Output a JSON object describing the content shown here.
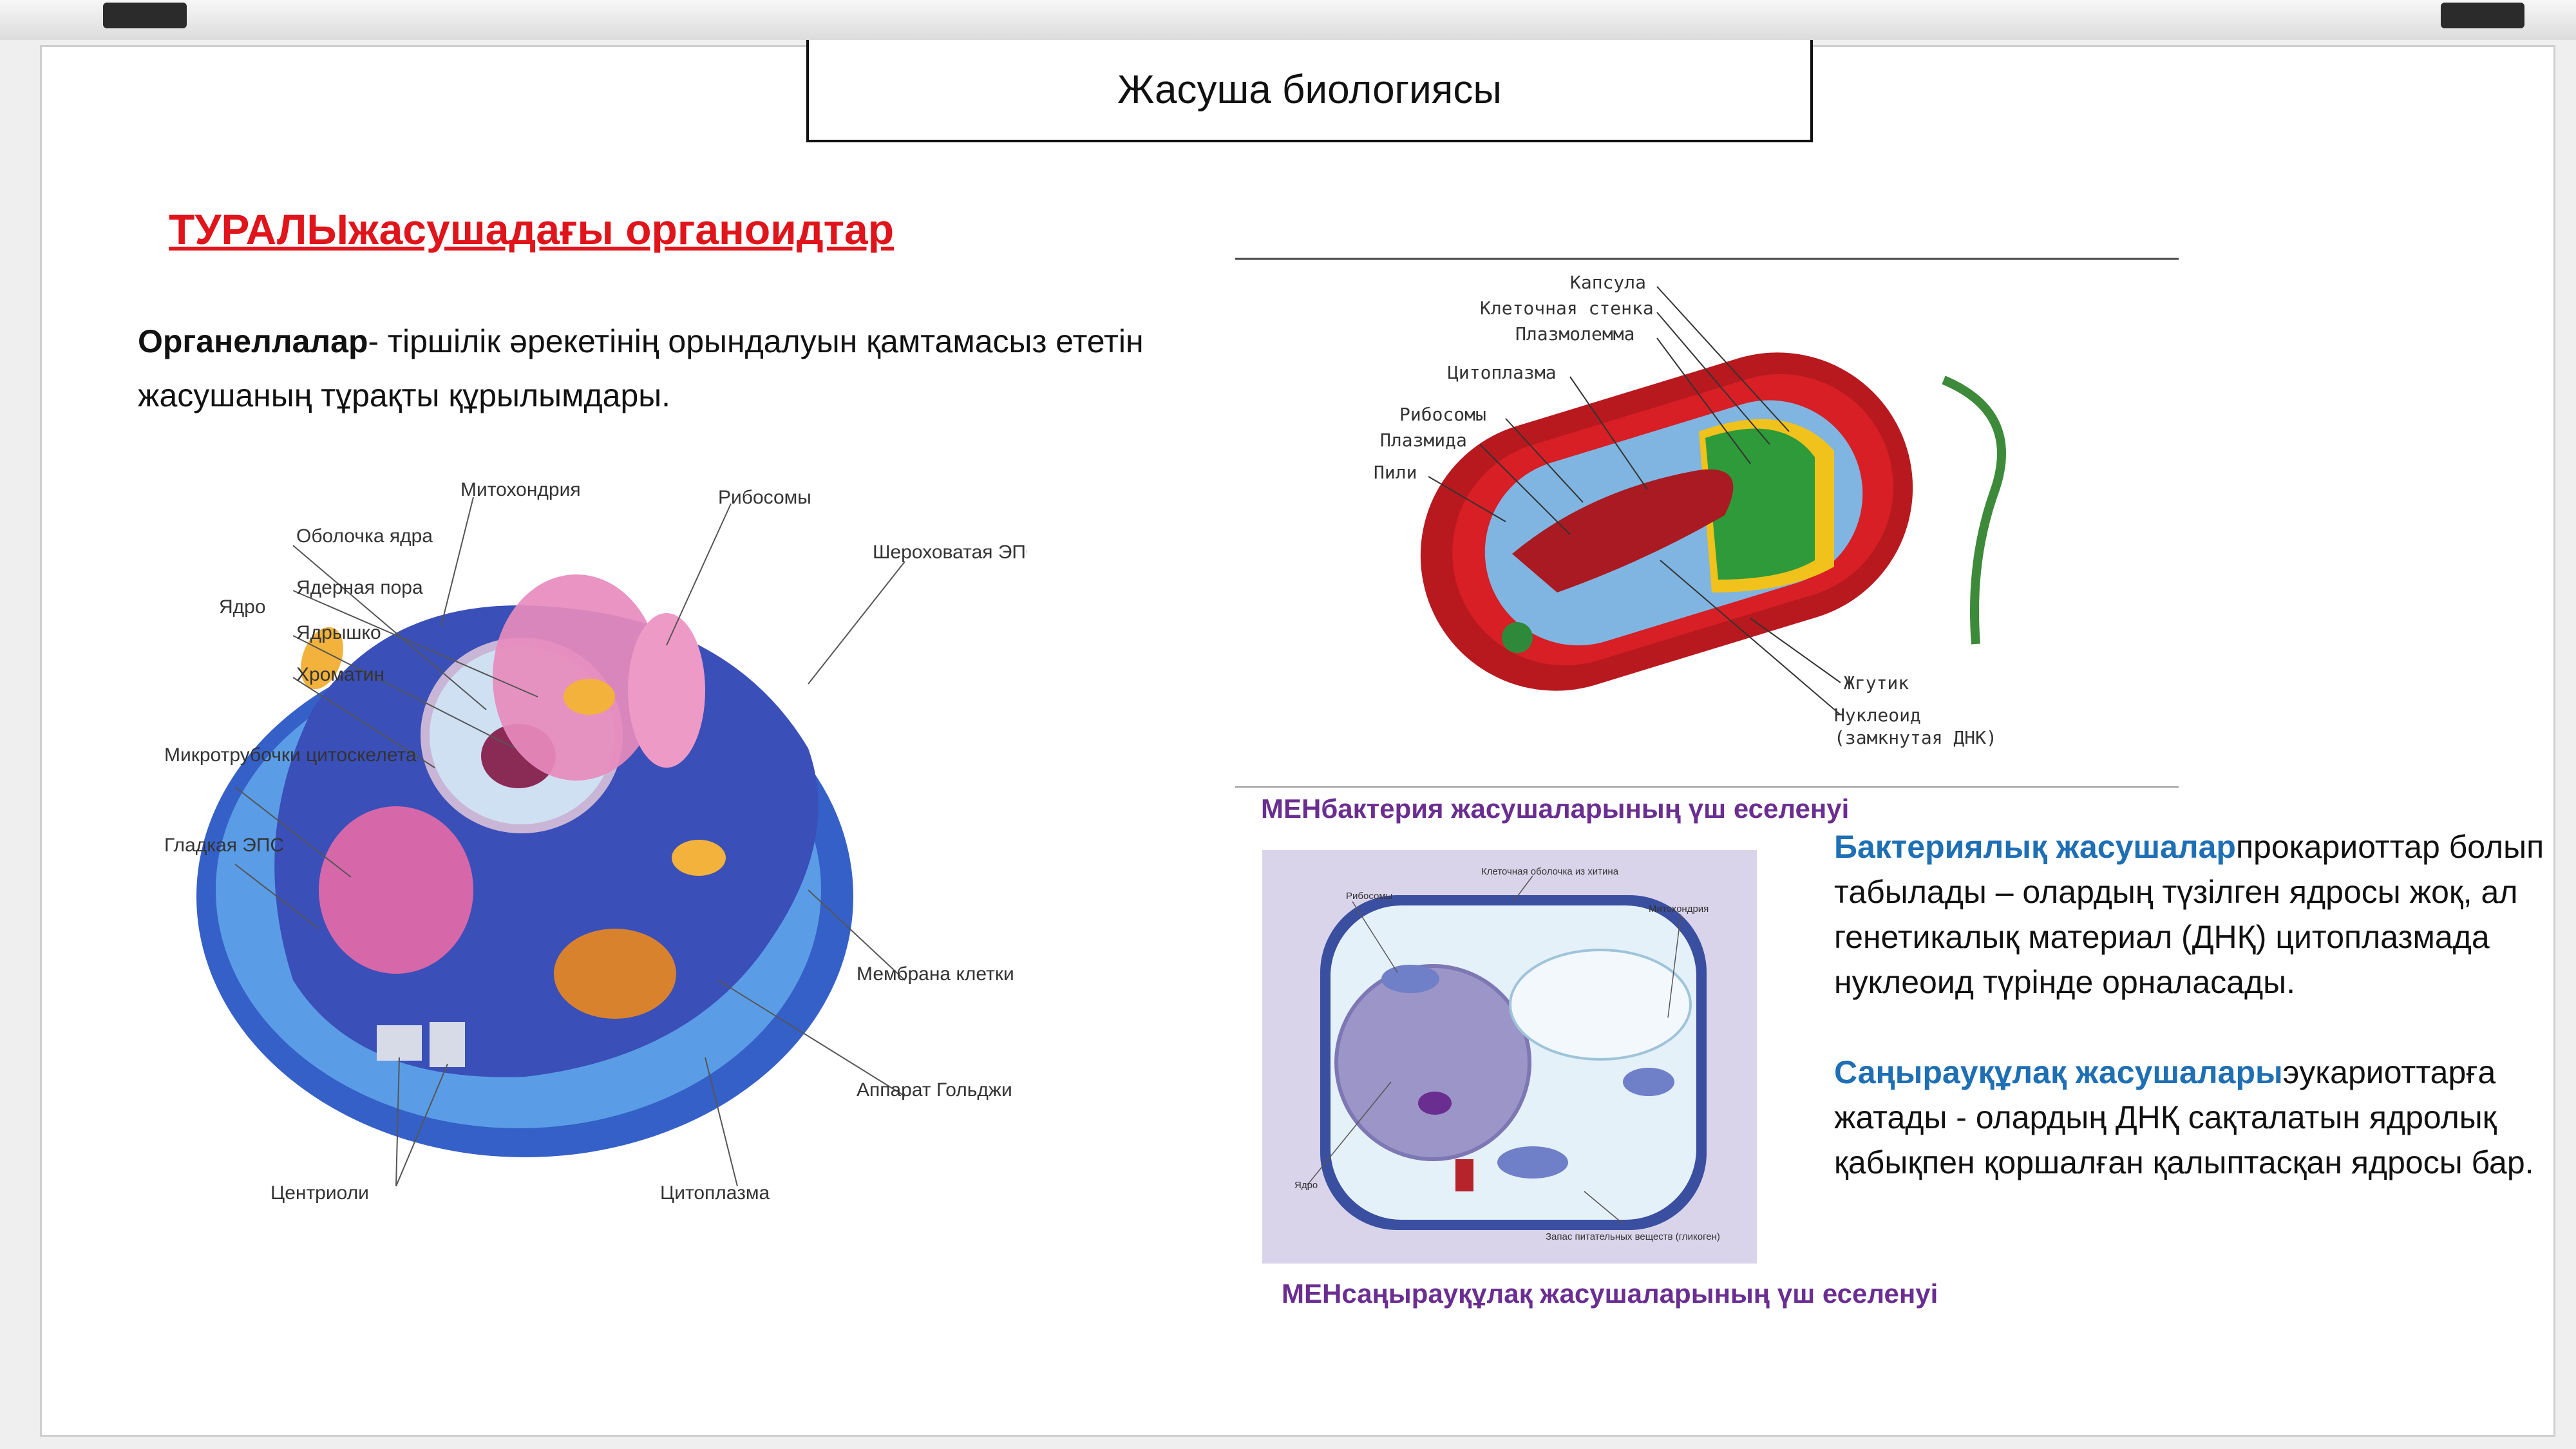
{
  "slide": {
    "title": "Жасуша биологиясы",
    "heading": "ТУРАЛЫжасушадағы органоидтар",
    "definition_term": "Органеллалар",
    "definition_text": "- тіршілік әрекетінің орындалуын қамтамасыз ететін жасушаның тұрақты құрылымдары."
  },
  "animal_cell": {
    "labels": {
      "mitochondria": "Митохондрия",
      "ribosomes": "Рибосомы",
      "rough_er": "Шероховатая ЭПС",
      "nucleus": "Ядро",
      "nuclear_envelope": "Оболочка ядра",
      "nuclear_pore": "Ядерная пора",
      "nucleolus": "Ядрышко",
      "chromatin": "Хроматин",
      "microtubules": "Микротрубочки цитоскелета",
      "smooth_er": "Гладкая ЭПС",
      "membrane": "Мембрана клетки",
      "golgi": "Аппарат Гольджи",
      "centrioles": "Центриоли",
      "cytoplasm": "Цитоплазма"
    }
  },
  "bacteria_cell": {
    "labels": {
      "capsule": "Капсула",
      "cell_wall": "Клеточная стенка",
      "plasmalemma": "Плазмолемма",
      "cytoplasm": "Цитоплазма",
      "ribosomes": "Рибосомы",
      "plasmid": "Плазмида",
      "pili": "Пили",
      "flagellum": "Жгутик",
      "nucleoid": "Нуклеоид",
      "nucleoid_note": "(замкнутая ДНК)"
    },
    "caption": "МЕНбактерия жасушаларының үш еселенуі"
  },
  "fungal_cell": {
    "labels": {
      "chitin_wall": "Клеточная оболочка из хитина",
      "ribosomes": "Рибосомы",
      "mitochondria": "Митохондрия",
      "nucleus": "Ядро",
      "storage": "Запас питательных веществ (гликоген)"
    },
    "caption": "МЕНсаңырауқұлақ жасушаларының үш еселенуі"
  },
  "info": {
    "bacteria_term": "Бактериялық жасушалар",
    "bacteria_text": "прокариоттар болып табылады – олардың түзілген ядросы жоқ, ал генетикалық материал (ДНҚ) цитоплазмада нуклеоид түрінде орналасады.",
    "fungi_term": "Саңырауқұлақ жасушалары",
    "fungi_text": "эукариоттарға жатады - олардың ДНҚ сақталатын ядролық қабықпен қоршалған қалыптасқан ядросы бар."
  },
  "colors": {
    "heading": "#e0141b",
    "term": "#1e6fb4",
    "caption": "#6a2e91"
  }
}
